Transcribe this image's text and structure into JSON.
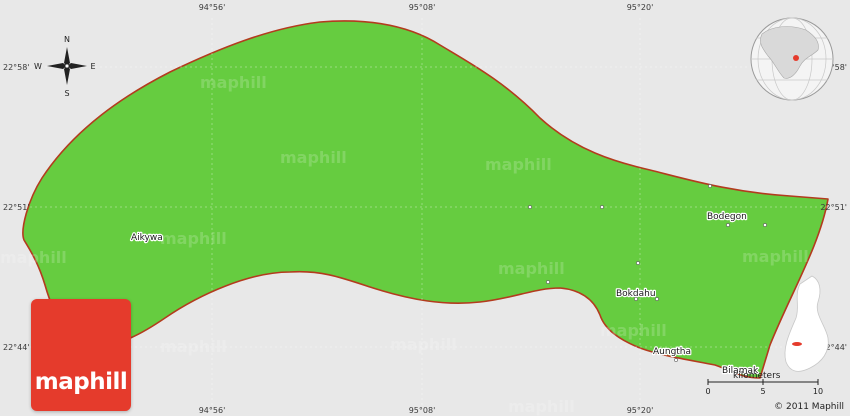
{
  "map": {
    "colors": {
      "background": "#e8e8e8",
      "land": "#66cc40",
      "border": "#b33b1e",
      "accent": "#e53b2c"
    },
    "longitude_labels": [
      "94°56'",
      "95°08'",
      "95°20'"
    ],
    "latitude_labels": [
      "22°58'",
      "22°51'",
      "22°44'"
    ],
    "compass": {
      "n": "N",
      "s": "S",
      "e": "E",
      "w": "W"
    },
    "places": [
      {
        "name": "Aikywa"
      },
      {
        "name": "Bodegon"
      },
      {
        "name": "Bokdahu"
      },
      {
        "name": "Aungtha"
      },
      {
        "name": "Bilamak"
      }
    ],
    "watermark": "maphill",
    "scale": {
      "unit": "kilometers",
      "ticks": [
        "0",
        "5",
        "10"
      ]
    },
    "logo": "maphill",
    "copyright": "© 2011 Maphill",
    "inset_icon": "globe-locator-icon",
    "inset_icon_2": "state-locator-icon"
  }
}
